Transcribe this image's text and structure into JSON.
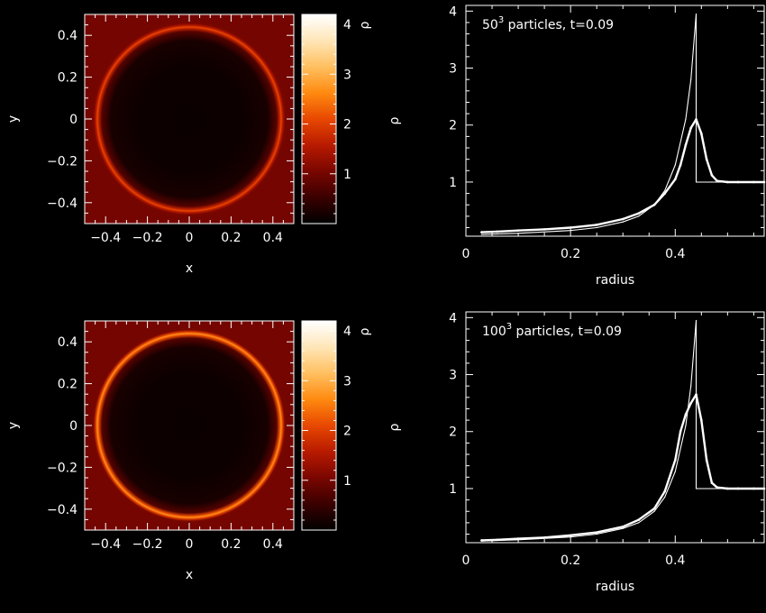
{
  "chart_data": [
    {
      "type": "heatmap",
      "xlabel": "x",
      "ylabel": "y",
      "xlim": [
        -0.5,
        0.5
      ],
      "ylim": [
        -0.5,
        0.5
      ],
      "xticks": [
        -0.4,
        -0.2,
        0,
        0.2,
        0.4
      ],
      "yticks": [
        -0.4,
        -0.2,
        0,
        0.2,
        0.4
      ],
      "xtick_labels": [
        "−0.4",
        "−0.2",
        "0",
        "0.2",
        "0.4"
      ],
      "ytick_labels": [
        "−0.4",
        "−0.2",
        "0",
        "0.2",
        "0.4"
      ],
      "shell_radius": 0.44,
      "shell_peak_density": 2.1,
      "interior_density": 0.1,
      "background_density": 1.0,
      "colorbar": {
        "label": "ρ",
        "range": [
          0,
          4.2
        ],
        "ticks": [
          1,
          2,
          3,
          4
        ],
        "tick_labels": [
          "1",
          "2",
          "3",
          "4"
        ],
        "colormap": [
          "#000000",
          "#3a0000",
          "#7a0600",
          "#b81a00",
          "#e84800",
          "#ff8a10",
          "#ffc060",
          "#ffe6b8",
          "#ffffff"
        ]
      }
    },
    {
      "type": "scatter",
      "annotation": {
        "base": "50",
        "sup": "3",
        "rest": " particles, t=0.09"
      },
      "xlabel": "radius",
      "ylabel": "ρ",
      "xlim": [
        0,
        0.57
      ],
      "ylim": [
        0.05,
        4.1
      ],
      "xticks": [
        0,
        0.2,
        0.4
      ],
      "yticks": [
        1,
        2,
        3,
        4
      ],
      "xtick_labels": [
        "0",
        "0.2",
        "0.4"
      ],
      "ytick_labels": [
        "1",
        "2",
        "3",
        "4"
      ],
      "series": [
        {
          "values": {
            "x": [
              0.03,
              0.06,
              0.1,
              0.15,
              0.2,
              0.25,
              0.3,
              0.33,
              0.36,
              0.38,
              0.4,
              0.41,
              0.42,
              0.43,
              0.44,
              0.45,
              0.46,
              0.47,
              0.48,
              0.5,
              0.52,
              0.55,
              0.57
            ],
            "y": [
              0.12,
              0.13,
              0.15,
              0.17,
              0.2,
              0.25,
              0.35,
              0.45,
              0.6,
              0.8,
              1.05,
              1.3,
              1.65,
              1.95,
              2.1,
              1.85,
              1.4,
              1.12,
              1.02,
              1.0,
              1.0,
              1.0,
              1.0
            ]
          }
        },
        {
          "values": {
            "x": [
              0.03,
              0.1,
              0.2,
              0.25,
              0.3,
              0.33,
              0.36,
              0.38,
              0.4,
              0.42,
              0.43,
              0.44,
              0.44,
              0.47,
              0.5,
              0.57
            ],
            "y": [
              0.08,
              0.1,
              0.15,
              0.2,
              0.3,
              0.4,
              0.6,
              0.85,
              1.3,
              2.1,
              2.8,
              3.95,
              1.0,
              1.0,
              1.0,
              1.0
            ]
          }
        }
      ]
    },
    {
      "type": "heatmap",
      "xlabel": "x",
      "ylabel": "y",
      "xlim": [
        -0.5,
        0.5
      ],
      "ylim": [
        -0.5,
        0.5
      ],
      "xticks": [
        -0.4,
        -0.2,
        0,
        0.2,
        0.4
      ],
      "yticks": [
        -0.4,
        -0.2,
        0,
        0.2,
        0.4
      ],
      "xtick_labels": [
        "−0.4",
        "−0.2",
        "0",
        "0.2",
        "0.4"
      ],
      "ytick_labels": [
        "−0.4",
        "−0.2",
        "0",
        "0.2",
        "0.4"
      ],
      "shell_radius": 0.44,
      "shell_peak_density": 2.7,
      "interior_density": 0.1,
      "background_density": 1.0,
      "colorbar": {
        "label": "ρ",
        "range": [
          0,
          4.2
        ],
        "ticks": [
          1,
          2,
          3,
          4
        ],
        "tick_labels": [
          "1",
          "2",
          "3",
          "4"
        ],
        "colormap": [
          "#000000",
          "#3a0000",
          "#7a0600",
          "#b81a00",
          "#e84800",
          "#ff8a10",
          "#ffc060",
          "#ffe6b8",
          "#ffffff"
        ]
      }
    },
    {
      "type": "scatter",
      "annotation": {
        "base": "100",
        "sup": "3",
        "rest": " particles, t=0.09"
      },
      "xlabel": "radius",
      "ylabel": "ρ",
      "xlim": [
        0,
        0.57
      ],
      "ylim": [
        0.05,
        4.1
      ],
      "xticks": [
        0,
        0.2,
        0.4
      ],
      "yticks": [
        1,
        2,
        3,
        4
      ],
      "xtick_labels": [
        "0",
        "0.2",
        "0.4"
      ],
      "ytick_labels": [
        "1",
        "2",
        "3",
        "4"
      ],
      "series": [
        {
          "values": {
            "x": [
              0.03,
              0.06,
              0.1,
              0.15,
              0.2,
              0.25,
              0.3,
              0.33,
              0.36,
              0.38,
              0.4,
              0.41,
              0.42,
              0.43,
              0.44,
              0.45,
              0.46,
              0.47,
              0.48,
              0.5,
              0.52,
              0.55,
              0.57
            ],
            "y": [
              0.09,
              0.1,
              0.12,
              0.14,
              0.18,
              0.23,
              0.33,
              0.45,
              0.65,
              0.95,
              1.5,
              2.0,
              2.3,
              2.5,
              2.65,
              2.2,
              1.5,
              1.1,
              1.02,
              1.0,
              1.0,
              1.0,
              1.0
            ]
          }
        },
        {
          "values": {
            "x": [
              0.03,
              0.1,
              0.2,
              0.25,
              0.3,
              0.33,
              0.36,
              0.38,
              0.4,
              0.42,
              0.43,
              0.44,
              0.44,
              0.47,
              0.5,
              0.57
            ],
            "y": [
              0.08,
              0.1,
              0.15,
              0.2,
              0.3,
              0.4,
              0.6,
              0.85,
              1.3,
              2.1,
              2.8,
              3.95,
              1.0,
              1.0,
              1.0,
              1.0
            ]
          }
        }
      ]
    }
  ]
}
